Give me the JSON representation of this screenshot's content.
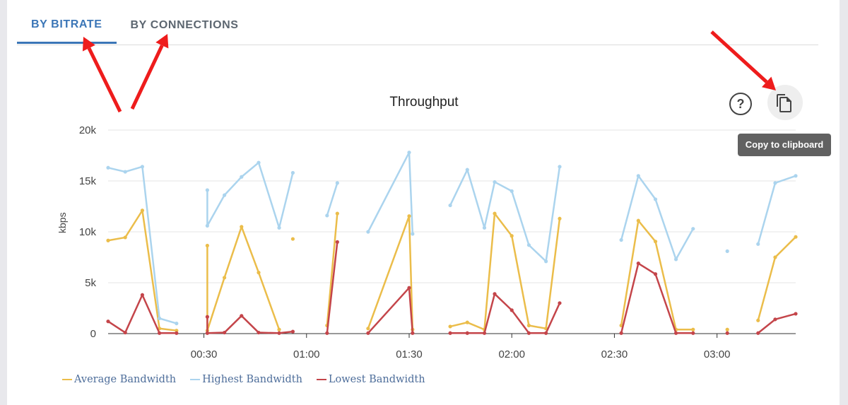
{
  "tabs": [
    {
      "label": "BY BITRATE",
      "active": true
    },
    {
      "label": "BY CONNECTIONS",
      "active": false
    }
  ],
  "toolbar": {
    "help_icon": "question-circle-icon",
    "copy_icon": "copy-icon",
    "tooltip": "Copy to clipboard"
  },
  "colors": {
    "accent": "#3b76b7",
    "average": "#ebbd4a",
    "highest": "#abd4ee",
    "lowest": "#c4454a",
    "annotation_arrow": "#ee1c1c"
  },
  "chart_data": {
    "type": "line",
    "title": "Throughput",
    "ylabel": "kbps",
    "xlabel": "",
    "ylim": [
      0,
      20000
    ],
    "yticks": [
      0,
      5000,
      10000,
      15000,
      20000
    ],
    "ytick_labels": [
      "0",
      "5k",
      "10k",
      "15k",
      "20k"
    ],
    "xlim": [
      "00:02",
      "03:23"
    ],
    "xticks": [
      "00:30",
      "01:00",
      "01:30",
      "02:00",
      "02:30",
      "03:00"
    ],
    "grid": true,
    "legend_position": "bottom-left",
    "series": [
      {
        "name": "Average Bandwidth",
        "segments": [
          [
            [
              "00:02",
              9150
            ],
            [
              "00:07",
              9450
            ],
            [
              "00:12",
              12100
            ],
            [
              "00:17",
              500
            ],
            [
              "00:22",
              300
            ]
          ],
          [
            [
              "00:31",
              8650
            ],
            [
              "00:31",
              300
            ],
            [
              "00:36",
              5500
            ],
            [
              "00:41",
              10500
            ],
            [
              "00:46",
              6000
            ],
            [
              "00:52",
              400
            ]
          ],
          [
            [
              "00:56",
              9300
            ]
          ],
          [
            [
              "01:06",
              800
            ],
            [
              "01:09",
              11800
            ]
          ],
          [
            [
              "01:18",
              500
            ],
            [
              "01:30",
              11550
            ],
            [
              "01:31",
              400
            ]
          ],
          [
            [
              "01:42",
              700
            ],
            [
              "01:47",
              1100
            ],
            [
              "01:52",
              400
            ],
            [
              "01:55",
              11800
            ],
            [
              "02:00",
              9600
            ],
            [
              "02:05",
              800
            ],
            [
              "02:10",
              500
            ],
            [
              "02:14",
              11300
            ]
          ],
          [
            [
              "02:32",
              800
            ],
            [
              "02:37",
              11100
            ],
            [
              "02:42",
              9050
            ],
            [
              "02:48",
              400
            ],
            [
              "02:53",
              400
            ]
          ],
          [
            [
              "03:03",
              400
            ]
          ],
          [
            [
              "03:12",
              1300
            ],
            [
              "03:17",
              7500
            ],
            [
              "03:23",
              9500
            ]
          ]
        ]
      },
      {
        "name": "Highest Bandwidth",
        "segments": [
          [
            [
              "00:02",
              16300
            ],
            [
              "00:07",
              15900
            ],
            [
              "00:12",
              16400
            ],
            [
              "00:17",
              1500
            ],
            [
              "00:22",
              1000
            ]
          ],
          [
            [
              "00:31",
              14100
            ],
            [
              "00:31",
              10600
            ],
            [
              "00:36",
              13600
            ],
            [
              "00:41",
              15400
            ],
            [
              "00:46",
              16800
            ],
            [
              "00:52",
              10400
            ],
            [
              "00:56",
              15800
            ]
          ],
          [
            [
              "01:06",
              11600
            ],
            [
              "01:09",
              14800
            ]
          ],
          [
            [
              "01:18",
              10000
            ],
            [
              "01:30",
              17800
            ],
            [
              "01:31",
              9800
            ]
          ],
          [
            [
              "01:42",
              12600
            ],
            [
              "01:47",
              16100
            ],
            [
              "01:52",
              10400
            ],
            [
              "01:55",
              14900
            ],
            [
              "02:00",
              14000
            ],
            [
              "02:05",
              8700
            ],
            [
              "02:10",
              7100
            ],
            [
              "02:14",
              16400
            ]
          ],
          [
            [
              "02:32",
              9200
            ],
            [
              "02:37",
              15500
            ],
            [
              "02:42",
              13200
            ],
            [
              "02:48",
              7300
            ],
            [
              "02:53",
              10300
            ]
          ],
          [
            [
              "03:03",
              8100
            ]
          ],
          [
            [
              "03:12",
              8800
            ],
            [
              "03:17",
              14800
            ],
            [
              "03:23",
              15500
            ]
          ]
        ]
      },
      {
        "name": "Lowest Bandwidth",
        "segments": [
          [
            [
              "00:02",
              1200
            ],
            [
              "00:07",
              100
            ],
            [
              "00:12",
              3800
            ],
            [
              "00:17",
              50
            ],
            [
              "00:22",
              50
            ]
          ],
          [
            [
              "00:31",
              1650
            ],
            [
              "00:31",
              50
            ],
            [
              "00:36",
              100
            ],
            [
              "00:41",
              1750
            ],
            [
              "00:46",
              100
            ],
            [
              "00:52",
              50
            ],
            [
              "00:56",
              200
            ]
          ],
          [
            [
              "01:06",
              50
            ],
            [
              "01:09",
              9000
            ]
          ],
          [
            [
              "01:18",
              50
            ],
            [
              "01:30",
              4500
            ],
            [
              "01:31",
              50
            ]
          ],
          [
            [
              "01:42",
              50
            ],
            [
              "01:47",
              50
            ],
            [
              "01:52",
              50
            ],
            [
              "01:55",
              3900
            ],
            [
              "02:00",
              2300
            ],
            [
              "02:05",
              50
            ],
            [
              "02:10",
              50
            ],
            [
              "02:14",
              3000
            ]
          ],
          [
            [
              "02:32",
              50
            ],
            [
              "02:37",
              6900
            ],
            [
              "02:42",
              5850
            ],
            [
              "02:48",
              50
            ],
            [
              "02:53",
              50
            ]
          ],
          [
            [
              "03:03",
              50
            ]
          ],
          [
            [
              "03:12",
              50
            ],
            [
              "03:17",
              1400
            ],
            [
              "03:23",
              1950
            ]
          ]
        ]
      }
    ]
  }
}
